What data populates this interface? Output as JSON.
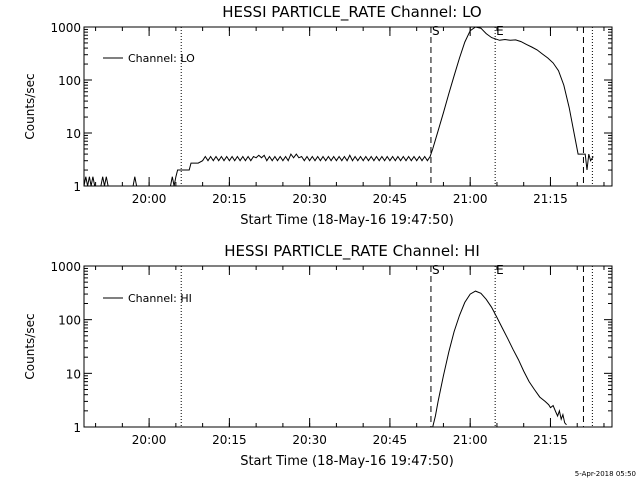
{
  "chart_data": [
    {
      "type": "line",
      "title": "HESSI PARTICLE_RATE Channel: LO",
      "xlabel": "Start Time (18-May-16 19:47:50)",
      "ylabel": "Counts/sec",
      "yscale": "log",
      "ylim": [
        1,
        1000
      ],
      "xlim": [
        "19:47:50",
        "21:26:30"
      ],
      "x_ticks": [
        "20:00",
        "20:15",
        "20:30",
        "20:45",
        "21:00",
        "21:15"
      ],
      "y_ticks": [
        "1",
        "10",
        "100",
        "1000"
      ],
      "legend": {
        "label": "Channel: LO",
        "location": "upper-left"
      },
      "markers": [
        {
          "label": "",
          "style": "dotted",
          "time": "20:06:00"
        },
        {
          "label": "S",
          "style": "dashed",
          "time": "20:52:40"
        },
        {
          "label": "E",
          "style": "dotted",
          "time": "21:04:40"
        },
        {
          "label": "",
          "style": "dashed",
          "time": "21:21:10"
        },
        {
          "label": "",
          "style": "dotted",
          "time": "21:22:50"
        }
      ],
      "series": [
        {
          "name": "Channel: LO",
          "points": [
            [
              "19:47:50",
              1
            ],
            [
              "19:48:10",
              1.5
            ],
            [
              "19:48:30",
              1
            ],
            [
              "19:48:50",
              1.5
            ],
            [
              "19:49:10",
              1
            ],
            [
              "19:49:30",
              1.5
            ],
            [
              "19:49:50",
              1
            ],
            [
              "19:51:00",
              1
            ],
            [
              "19:51:20",
              1.5
            ],
            [
              "19:51:40",
              1
            ],
            [
              "19:52:00",
              1.5
            ],
            [
              "19:52:20",
              1
            ],
            [
              "19:57:00",
              1
            ],
            [
              "19:57:20",
              1.5
            ],
            [
              "19:57:40",
              1
            ],
            [
              "20:04:00",
              1
            ],
            [
              "20:04:20",
              1.5
            ],
            [
              "20:04:40",
              1
            ],
            [
              "20:05:00",
              1.5
            ],
            [
              "20:05:20",
              2
            ],
            [
              "20:07:30",
              2
            ],
            [
              "20:07:50",
              2.7
            ],
            [
              "20:09:10",
              2.7
            ],
            [
              "20:10:00",
              3
            ],
            [
              "20:10:30",
              3.6
            ],
            [
              "20:11:00",
              3
            ],
            [
              "20:11:30",
              3.6
            ],
            [
              "20:12:00",
              3
            ],
            [
              "20:12:30",
              3.6
            ],
            [
              "20:13:00",
              3
            ],
            [
              "20:13:30",
              3.6
            ],
            [
              "20:14:00",
              3
            ],
            [
              "20:14:30",
              3.6
            ],
            [
              "20:15:00",
              3
            ],
            [
              "20:15:30",
              3.6
            ],
            [
              "20:16:00",
              3
            ],
            [
              "20:16:30",
              3.6
            ],
            [
              "20:17:00",
              3
            ],
            [
              "20:17:30",
              3.6
            ],
            [
              "20:18:00",
              3
            ],
            [
              "20:18:30",
              3.6
            ],
            [
              "20:19:00",
              3
            ],
            [
              "20:19:30",
              3.6
            ],
            [
              "20:20:00",
              3.4
            ],
            [
              "20:20:30",
              3.8
            ],
            [
              "20:21:00",
              3.4
            ],
            [
              "20:21:30",
              3.8
            ],
            [
              "20:22:00",
              3
            ],
            [
              "20:22:30",
              3.6
            ],
            [
              "20:23:00",
              3
            ],
            [
              "20:23:30",
              3.6
            ],
            [
              "20:24:00",
              3
            ],
            [
              "20:24:30",
              3.6
            ],
            [
              "20:25:00",
              3
            ],
            [
              "20:25:30",
              3.6
            ],
            [
              "20:26:00",
              3
            ],
            [
              "20:26:30",
              4
            ],
            [
              "20:27:00",
              3.4
            ],
            [
              "20:27:30",
              4
            ],
            [
              "20:28:00",
              3.4
            ],
            [
              "20:28:30",
              3.6
            ],
            [
              "20:29:00",
              3
            ],
            [
              "20:29:30",
              3.6
            ],
            [
              "20:30:00",
              3
            ],
            [
              "20:30:30",
              3.6
            ],
            [
              "20:31:00",
              3
            ],
            [
              "20:31:30",
              3.6
            ],
            [
              "20:32:00",
              3
            ],
            [
              "20:32:30",
              3.6
            ],
            [
              "20:33:00",
              3
            ],
            [
              "20:33:30",
              3.6
            ],
            [
              "20:34:00",
              3
            ],
            [
              "20:34:30",
              3.6
            ],
            [
              "20:35:00",
              3
            ],
            [
              "20:35:30",
              3.6
            ],
            [
              "20:36:00",
              3
            ],
            [
              "20:36:30",
              3.6
            ],
            [
              "20:37:00",
              3
            ],
            [
              "20:37:30",
              3.8
            ],
            [
              "20:38:00",
              3
            ],
            [
              "20:38:30",
              3.6
            ],
            [
              "20:39:00",
              3
            ],
            [
              "20:39:30",
              3.6
            ],
            [
              "20:40:00",
              3
            ],
            [
              "20:40:30",
              3.6
            ],
            [
              "20:41:00",
              3
            ],
            [
              "20:41:30",
              3.6
            ],
            [
              "20:42:00",
              3
            ],
            [
              "20:42:30",
              3.6
            ],
            [
              "20:43:00",
              3
            ],
            [
              "20:43:30",
              3.6
            ],
            [
              "20:44:00",
              3
            ],
            [
              "20:44:30",
              3.6
            ],
            [
              "20:45:00",
              3
            ],
            [
              "20:45:30",
              3.6
            ],
            [
              "20:46:00",
              3
            ],
            [
              "20:46:30",
              3.6
            ],
            [
              "20:47:00",
              3
            ],
            [
              "20:47:30",
              3.6
            ],
            [
              "20:48:00",
              3
            ],
            [
              "20:48:30",
              3.6
            ],
            [
              "20:49:00",
              3
            ],
            [
              "20:49:30",
              3.6
            ],
            [
              "20:50:00",
              3
            ],
            [
              "20:50:30",
              3.6
            ],
            [
              "20:51:00",
              3
            ],
            [
              "20:51:30",
              3.6
            ],
            [
              "20:52:00",
              3
            ],
            [
              "20:52:30",
              3.6
            ],
            [
              "20:53:00",
              5
            ],
            [
              "20:54:00",
              11
            ],
            [
              "20:55:00",
              24
            ],
            [
              "20:56:00",
              55
            ],
            [
              "20:57:00",
              120
            ],
            [
              "20:58:00",
              260
            ],
            [
              "20:59:00",
              520
            ],
            [
              "21:00:00",
              850
            ],
            [
              "21:01:00",
              1000
            ],
            [
              "21:02:00",
              950
            ],
            [
              "21:03:00",
              750
            ],
            [
              "21:04:00",
              630
            ],
            [
              "21:04:40",
              600
            ],
            [
              "21:05:30",
              560
            ],
            [
              "21:06:30",
              580
            ],
            [
              "21:07:30",
              560
            ],
            [
              "21:08:30",
              570
            ],
            [
              "21:09:30",
              530
            ],
            [
              "21:10:30",
              470
            ],
            [
              "21:11:30",
              420
            ],
            [
              "21:12:30",
              370
            ],
            [
              "21:13:30",
              310
            ],
            [
              "21:14:30",
              260
            ],
            [
              "21:15:30",
              210
            ],
            [
              "21:16:30",
              150
            ],
            [
              "21:17:30",
              80
            ],
            [
              "21:18:30",
              30
            ],
            [
              "21:19:30",
              9
            ],
            [
              "21:20:10",
              4
            ],
            [
              "21:21:30",
              4
            ],
            [
              "21:21:50",
              2
            ],
            [
              "21:22:10",
              4
            ],
            [
              "21:22:30",
              3
            ],
            [
              "21:23:00",
              3.6
            ]
          ]
        }
      ]
    },
    {
      "type": "line",
      "title": "HESSI PARTICLE_RATE Channel: HI",
      "xlabel": "Start Time (18-May-16 19:47:50)",
      "ylabel": "Counts/sec",
      "yscale": "log",
      "ylim": [
        1,
        1000
      ],
      "xlim": [
        "19:47:50",
        "21:26:30"
      ],
      "x_ticks": [
        "20:00",
        "20:15",
        "20:30",
        "20:45",
        "21:00",
        "21:15"
      ],
      "y_ticks": [
        "1",
        "10",
        "100",
        "1000"
      ],
      "legend": {
        "label": "Channel: HI",
        "location": "upper-left"
      },
      "markers": [
        {
          "label": "",
          "style": "dotted",
          "time": "20:06:00"
        },
        {
          "label": "S",
          "style": "dashed",
          "time": "20:52:40"
        },
        {
          "label": "E",
          "style": "dotted",
          "time": "21:04:40"
        },
        {
          "label": "",
          "style": "dashed",
          "time": "21:21:10"
        },
        {
          "label": "",
          "style": "dotted",
          "time": "21:22:50"
        }
      ],
      "series": [
        {
          "name": "Channel: HI",
          "points": [
            [
              "20:53:00",
              1
            ],
            [
              "20:53:30",
              1.6
            ],
            [
              "20:54:00",
              3
            ],
            [
              "20:55:00",
              9
            ],
            [
              "20:56:00",
              25
            ],
            [
              "20:57:00",
              60
            ],
            [
              "20:58:00",
              120
            ],
            [
              "20:59:00",
              210
            ],
            [
              "21:00:00",
              300
            ],
            [
              "21:01:00",
              340
            ],
            [
              "21:02:00",
              310
            ],
            [
              "21:03:00",
              240
            ],
            [
              "21:04:00",
              170
            ],
            [
              "21:05:00",
              110
            ],
            [
              "21:06:00",
              70
            ],
            [
              "21:07:00",
              45
            ],
            [
              "21:08:00",
              28
            ],
            [
              "21:09:00",
              18
            ],
            [
              "21:10:00",
              11
            ],
            [
              "21:11:00",
              7
            ],
            [
              "21:12:00",
              5
            ],
            [
              "21:13:00",
              3.6
            ],
            [
              "21:14:00",
              3
            ],
            [
              "21:14:40",
              2.6
            ],
            [
              "21:15:00",
              2.3
            ],
            [
              "21:15:30",
              2.5
            ],
            [
              "21:16:00",
              1.9
            ],
            [
              "21:16:20",
              1.6
            ],
            [
              "21:16:40",
              2
            ],
            [
              "21:17:00",
              1.4
            ],
            [
              "21:17:20",
              1.7
            ],
            [
              "21:17:40",
              1.2
            ],
            [
              "21:18:00",
              1.1
            ]
          ]
        }
      ]
    }
  ],
  "timestamp": "5-Apr-2018 05:50"
}
